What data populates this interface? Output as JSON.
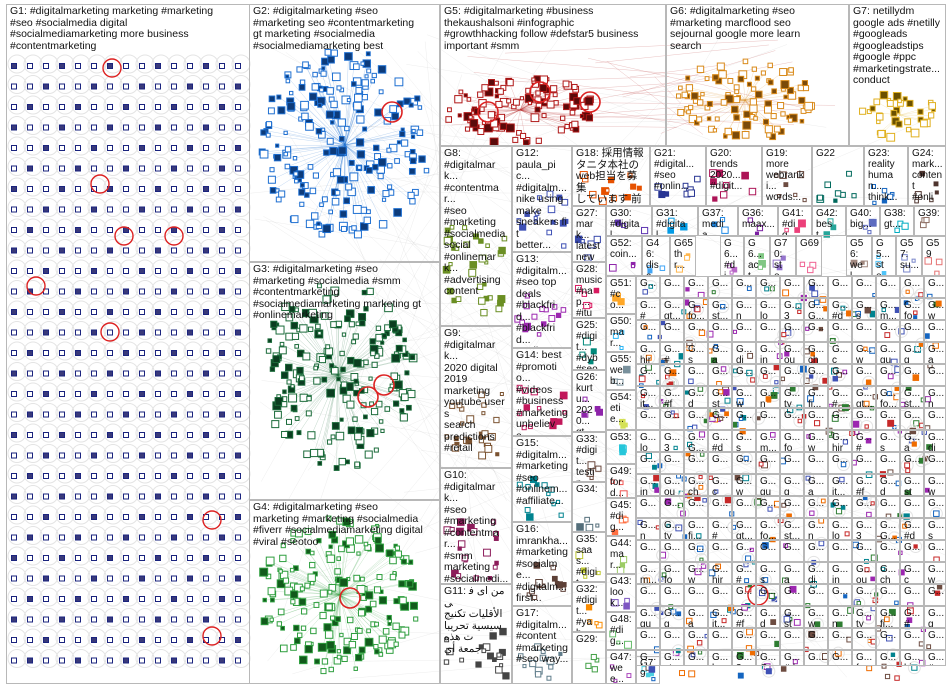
{
  "groups": [
    {
      "id": "G1",
      "label": "G1: #digitalmarketing marketing #marketing\n#seo #socialmedia digital\n#socialmediamarketing more business\n#contentmarketing",
      "color": "#1a237e"
    },
    {
      "id": "G2",
      "label": "G2: #digitalmarketing #seo\n#marketing seo #contentmarketing\ngt marketing #socialmedia\n#socialmediamarketing best",
      "color": "#1e6fd1"
    },
    {
      "id": "G3",
      "label": "G3: #digitalmarketing #seo\n#marketing #socialmedia #smm\n#contentmarketing\n#socialmediamarketing marketing gt\n#onlinemarketing",
      "color": "#1b6b3a"
    },
    {
      "id": "G4",
      "label": "G4: #digitalmarketing #seo\nmarketing #marketing #socialmedia\n#fiverr #socialmediamarketing digital\n#viral #seotoo",
      "color": "#2e9e3e"
    },
    {
      "id": "G5",
      "label": "G5: #digitalmarketing #business\nthekaushalsoni #infographic\n#growthhacking follow #defstar5 business\nimportant #smm",
      "color": "#b01818"
    },
    {
      "id": "G6",
      "label": "G6: #digitalmarketing #seo\n#marketing marcflood seo\nsejournal google more learn\nsearch",
      "color": "#d98a1a"
    },
    {
      "id": "G7",
      "label": "G7: netillydm\ngoogle ads #netilly\n#googleads\n#googleadstips\n#google #ppc\n#marketingstrate...\nconduct",
      "color": "#e0b020"
    },
    {
      "id": "G8",
      "label": "G8:\n#digitalmark...\n#contentmar...\n#seo\n#marketing\n#socialmedia\nsocial\n#onlinemark...\n#advertising\ncontent",
      "color": "#6a8e23"
    },
    {
      "id": "G9",
      "label": "G9:\n#digitalmark...\n2020 digital\n2019\nmarketing\nyoutube users\nsearch\npredictions\n#retail",
      "color": "#7a5230"
    },
    {
      "id": "G10",
      "label": "G10:\n#digitalmark...\n#seo\n#marketing\n#contentmar...\n#smm\nmarketing\n#socialmedi...",
      "color": "#8c1c5a"
    },
    {
      "id": "G11",
      "label": "G11: من ای فی\nالأقليات تكنيج\nسيسية تحريبات هذه\nجمعة أي",
      "color": "#444444"
    },
    {
      "id": "G12",
      "label": "G12:\npaula_pic...\n#digitalm...\nnike using\nmake\nsneakers fit\nbetter...",
      "color": "#3f51b5"
    },
    {
      "id": "G13",
      "label": "G13:\n#digitalm...\n#seo top\ndeals\n#blackfrid...\n#blackfrid...\n#onlinem...",
      "color": "#9c27b0"
    },
    {
      "id": "G14",
      "label": "G14: best\n#promotio...\n#videos\n#business\n#marketing\nunbelieva...",
      "color": "#c2185b"
    },
    {
      "id": "G15",
      "label": "G15:\n#digitalm...\n#marketing\n#seo\n#onlinem...\n#affiliate...",
      "color": "#00838f"
    },
    {
      "id": "G16",
      "label": "G16:\nimrankha...\n#marketing\n#socialme...\n#digitalm...\nfirst...",
      "color": "#5d4037"
    },
    {
      "id": "G17",
      "label": "G17:\n#digitalm...\n#content\n#marketing\n#seo way...",
      "color": "#607d8b"
    },
    {
      "id": "G18",
      "label": "G18: 採用情報\nタニタ本社の\nweb担当を募集\nしています 前回...",
      "color": "#e65100"
    },
    {
      "id": "G21",
      "label": "G21:\n#digital...\n#seo\n#onlin...",
      "color": "#283593"
    },
    {
      "id": "G20",
      "label": "G20:\ntrends\n2020...\n#digit...",
      "color": "#ad1457"
    },
    {
      "id": "G19",
      "label": "G19:\nmore\nwebranki...\nwords...",
      "color": "#6d4c41"
    },
    {
      "id": "G22",
      "label": "G22",
      "color": "#00695c"
    },
    {
      "id": "G23",
      "label": "G23:\nreality\nhuman...\nthink...",
      "color": "#1565c0"
    },
    {
      "id": "G24",
      "label": "G24:\nmark...\ncontent\n#onlin...",
      "color": "#4e342e"
    },
    {
      "id": "G25",
      "label": "G25:\n#digit...\n#dyb\n#seo",
      "color": "#00897b"
    },
    {
      "id": "G26",
      "label": "G26:\nkurtu...\n2020...\ngt...",
      "color": "#8e24aa"
    },
    {
      "id": "G27",
      "label": "G27:\nmark...\nlatest\nnews...",
      "color": "#3949ab"
    },
    {
      "id": "G28",
      "label": "G28:\nmusic\n#nap...\n#itun...",
      "color": "#d81b60"
    },
    {
      "id": "G29",
      "label": "G29:",
      "color": "#43a047"
    },
    {
      "id": "G30",
      "label": "G30:\n#digital...",
      "color": "#5e35b1"
    },
    {
      "id": "G31",
      "label": "G31:\n#digital...",
      "color": "#039be5"
    },
    {
      "id": "G32",
      "label": "G32:\n#digit...\n#yah...",
      "color": "#fb8c00"
    },
    {
      "id": "G33",
      "label": "G33:\n#digit...\ntestin...",
      "color": "#6d4c41"
    },
    {
      "id": "G34",
      "label": "G34:",
      "color": "#546e7a"
    },
    {
      "id": "G35",
      "label": "G35:\nsaas...\n#digit...",
      "color": "#c0ca33"
    },
    {
      "id": "G36",
      "label": "G36:\nmaax...",
      "color": "#7b1fa2"
    },
    {
      "id": "G37",
      "label": "G37:\nmedia...",
      "color": "#1e88e5"
    },
    {
      "id": "G38",
      "label": "G38:\ngt...",
      "color": "#00acc1"
    },
    {
      "id": "G39",
      "label": "G39:",
      "color": "#8d6e63"
    },
    {
      "id": "G40",
      "label": "G40:\nbig...",
      "color": "#5c6bc0"
    },
    {
      "id": "G41",
      "label": "G41:\n#dig...",
      "color": "#ec407a"
    },
    {
      "id": "G42",
      "label": "G42:\nbest...",
      "color": "#26a69a"
    },
    {
      "id": "G43",
      "label": "G43:\nlook...",
      "color": "#7e57c2"
    },
    {
      "id": "G44",
      "label": "G44:\nmar...",
      "color": "#9ccc65"
    },
    {
      "id": "G45",
      "label": "G45:\n#dig...",
      "color": "#ff7043"
    },
    {
      "id": "G46",
      "label": "G46:\ndisc...",
      "color": "#42a5f5"
    },
    {
      "id": "G47",
      "label": "G47:\nwee...",
      "color": "#ab47bc"
    },
    {
      "id": "G48",
      "label": "G48:\n#dig...",
      "color": "#66bb6a"
    },
    {
      "id": "G49",
      "label": "G49:\nford...",
      "color": "#ef5350"
    },
    {
      "id": "G50",
      "label": "G50:\nmar...",
      "color": "#29b6f6"
    },
    {
      "id": "G51",
      "label": "G51:\n#co...",
      "color": "#ffa726"
    },
    {
      "id": "G52",
      "label": "G52:\ncoin...",
      "color": "#8e24aa"
    },
    {
      "id": "G53",
      "label": "G53:",
      "color": "#26c6da"
    },
    {
      "id": "G54",
      "label": "G54:\netie...",
      "color": "#d4e157"
    },
    {
      "id": "G55",
      "label": "G55:\nweb...",
      "color": "#78909c"
    },
    {
      "id": "G56",
      "label": "G56:\nwel...",
      "color": "#a1887f"
    },
    {
      "id": "G57",
      "label": "G57:\nsu...",
      "color": "#7986cb"
    },
    {
      "id": "G58",
      "label": "G58:",
      "color": "#4db6ac"
    },
    {
      "id": "G59",
      "label": "G59",
      "color": "#e57373"
    },
    {
      "id": "G60",
      "label": "G6...\nact...",
      "color": "#81c784"
    },
    {
      "id": "G61",
      "label": "G6...\n#di...",
      "color": "#ba68c8"
    },
    {
      "id": "G62",
      "label": "G5...\nste...",
      "color": "#4fc3f7"
    },
    {
      "id": "G63",
      "label": "G65\nthr...",
      "color": "#ffb74d"
    },
    {
      "id": "G64",
      "label": "G69",
      "color": "#f06292"
    },
    {
      "id": "G65",
      "label": "G70:\nste...",
      "color": "#9575cd"
    },
    {
      "id": "G66",
      "label": "G79",
      "color": "#4dd0e1"
    }
  ],
  "small_cell_label": "G...",
  "small_cell_words": [
    "#d...",
    "gt...",
    "fo...",
    "st...",
    "ne...",
    "lov...",
    "30...",
    "G...",
    "#di...",
    "su...",
    "m...",
    "fol...",
    "wa...",
    "hiri...",
    "#s...",
    "sp...",
    "ad...",
    "dig...",
    "inf...",
    "out...",
    "chr...",
    "co...",
    "wo...",
    "gui...",
    "go...",
    "ap...",
    "it...",
    "#fi...",
    "de...",
    "sta...",
    "wh...",
    "ne...",
    "tyl...",
    "fi..."
  ]
}
